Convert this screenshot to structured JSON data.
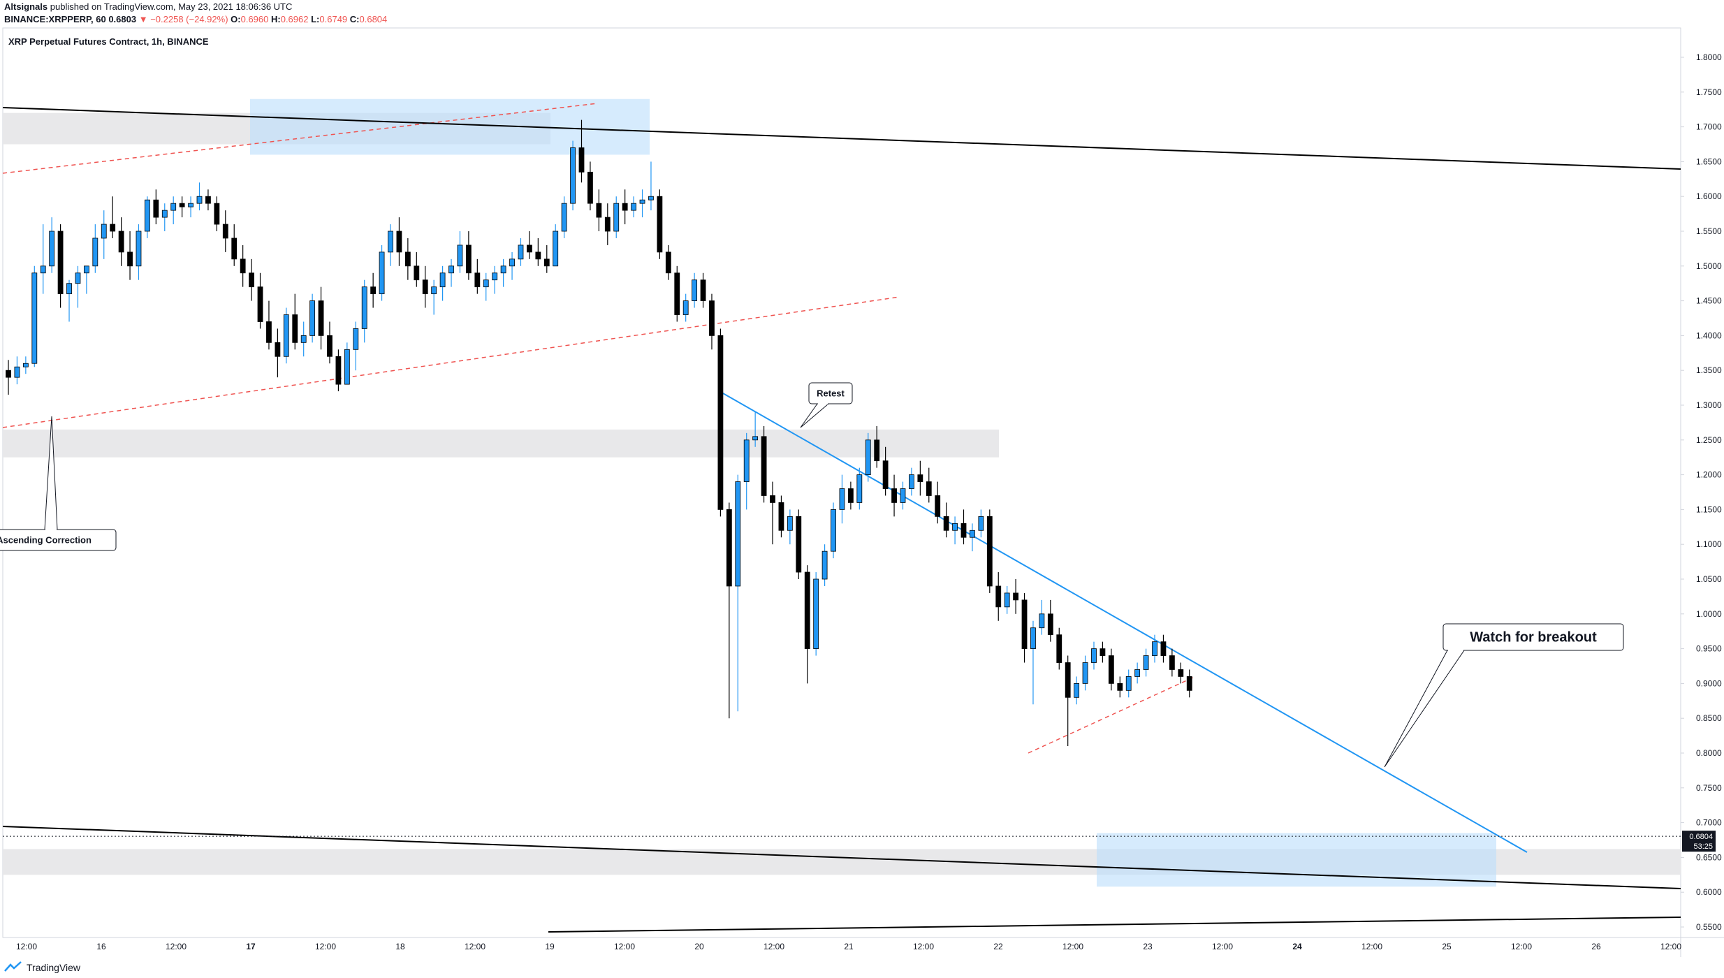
{
  "header": {
    "publisher": "Altsignals",
    "published_text": "published on TradingView.com, May 23, 2021 18:06:36 UTC",
    "symbol_line": "BINANCE:XRPPERP, 60",
    "last": "0.6803",
    "change": "−0.2258 (−24.92%)",
    "open_label": "O:",
    "open": "0.6960",
    "high_label": "H:",
    "high": "0.6962",
    "low_label": "L:",
    "low": "0.6749",
    "close_label": "C:",
    "close": "0.6804"
  },
  "footer": {
    "brand": "TradingView"
  },
  "colors": {
    "up": "#2196f3",
    "down": "#000000",
    "trendline": "#2196f3",
    "dashed": "#ef5350",
    "zone_gray": "#e8e8ea",
    "zone_blue": "#bbdefb",
    "neg": "#ef5350"
  },
  "chart_data": {
    "type": "candlestick",
    "title": "XRP Perpetual Futures Contract, 1h, BINANCE",
    "y_ticks": [
      "1.8000",
      "1.7500",
      "1.7000",
      "1.6500",
      "1.6000",
      "1.5500",
      "1.5000",
      "1.4500",
      "1.4000",
      "1.3500",
      "1.3000",
      "1.2500",
      "1.2000",
      "1.1500",
      "1.1000",
      "1.0500",
      "1.0000",
      "0.9500",
      "0.9000",
      "0.8500",
      "0.8000",
      "0.7500",
      "0.7000",
      "0.6500",
      "0.6000",
      "0.5500"
    ],
    "ylim": [
      0.55,
      1.8
    ],
    "x_ticks": [
      "12:00",
      "16",
      "12:00",
      "17",
      "12:00",
      "18",
      "12:00",
      "19",
      "12:00",
      "20",
      "12:00",
      "21",
      "12:00",
      "22",
      "12:00",
      "23",
      "12:00",
      "24",
      "12:00",
      "25",
      "12:00",
      "26",
      "12:00"
    ],
    "bold_x_ticks": [
      "17",
      "24"
    ],
    "last_price": "0.6804",
    "countdown": "53:25",
    "x_start": "2021-05-15 12:00",
    "x_end": "2021-05-26 12:00",
    "candle_interval_hours": 1,
    "candles": [
      [
        1.35,
        1.365,
        1.315,
        1.34
      ],
      [
        1.34,
        1.37,
        1.33,
        1.355
      ],
      [
        1.355,
        1.37,
        1.345,
        1.36
      ],
      [
        1.36,
        1.5,
        1.355,
        1.49
      ],
      [
        1.49,
        1.56,
        1.46,
        1.5
      ],
      [
        1.5,
        1.57,
        1.49,
        1.55
      ],
      [
        1.55,
        1.56,
        1.44,
        1.46
      ],
      [
        1.46,
        1.48,
        1.42,
        1.475
      ],
      [
        1.475,
        1.5,
        1.44,
        1.49
      ],
      [
        1.49,
        1.5,
        1.46,
        1.5
      ],
      [
        1.5,
        1.56,
        1.49,
        1.54
      ],
      [
        1.54,
        1.58,
        1.51,
        1.56
      ],
      [
        1.56,
        1.6,
        1.54,
        1.55
      ],
      [
        1.55,
        1.57,
        1.5,
        1.52
      ],
      [
        1.52,
        1.55,
        1.48,
        1.5
      ],
      [
        1.5,
        1.56,
        1.48,
        1.55
      ],
      [
        1.55,
        1.6,
        1.54,
        1.595
      ],
      [
        1.595,
        1.61,
        1.56,
        1.57
      ],
      [
        1.57,
        1.59,
        1.55,
        1.58
      ],
      [
        1.58,
        1.6,
        1.56,
        1.59
      ],
      [
        1.59,
        1.6,
        1.57,
        1.585
      ],
      [
        1.585,
        1.6,
        1.57,
        1.59
      ],
      [
        1.59,
        1.62,
        1.58,
        1.6
      ],
      [
        1.6,
        1.61,
        1.58,
        1.59
      ],
      [
        1.59,
        1.6,
        1.55,
        1.56
      ],
      [
        1.56,
        1.58,
        1.52,
        1.54
      ],
      [
        1.54,
        1.56,
        1.5,
        1.51
      ],
      [
        1.51,
        1.53,
        1.47,
        1.49
      ],
      [
        1.49,
        1.51,
        1.45,
        1.47
      ],
      [
        1.47,
        1.49,
        1.41,
        1.42
      ],
      [
        1.42,
        1.45,
        1.38,
        1.39
      ],
      [
        1.39,
        1.41,
        1.34,
        1.37
      ],
      [
        1.37,
        1.44,
        1.36,
        1.43
      ],
      [
        1.43,
        1.46,
        1.38,
        1.39
      ],
      [
        1.39,
        1.42,
        1.37,
        1.4
      ],
      [
        1.4,
        1.46,
        1.39,
        1.45
      ],
      [
        1.45,
        1.47,
        1.38,
        1.4
      ],
      [
        1.4,
        1.42,
        1.36,
        1.37
      ],
      [
        1.37,
        1.38,
        1.32,
        1.33
      ],
      [
        1.33,
        1.39,
        1.33,
        1.38
      ],
      [
        1.38,
        1.42,
        1.35,
        1.41
      ],
      [
        1.41,
        1.48,
        1.39,
        1.47
      ],
      [
        1.47,
        1.49,
        1.44,
        1.46
      ],
      [
        1.46,
        1.53,
        1.45,
        1.52
      ],
      [
        1.52,
        1.56,
        1.5,
        1.55
      ],
      [
        1.55,
        1.57,
        1.5,
        1.52
      ],
      [
        1.52,
        1.54,
        1.48,
        1.5
      ],
      [
        1.5,
        1.52,
        1.47,
        1.48
      ],
      [
        1.48,
        1.5,
        1.44,
        1.46
      ],
      [
        1.46,
        1.48,
        1.43,
        1.47
      ],
      [
        1.47,
        1.5,
        1.45,
        1.49
      ],
      [
        1.49,
        1.51,
        1.47,
        1.5
      ],
      [
        1.5,
        1.55,
        1.49,
        1.53
      ],
      [
        1.53,
        1.55,
        1.48,
        1.49
      ],
      [
        1.49,
        1.51,
        1.46,
        1.47
      ],
      [
        1.47,
        1.49,
        1.45,
        1.48
      ],
      [
        1.48,
        1.5,
        1.46,
        1.49
      ],
      [
        1.49,
        1.51,
        1.47,
        1.5
      ],
      [
        1.5,
        1.52,
        1.48,
        1.51
      ],
      [
        1.51,
        1.54,
        1.5,
        1.53
      ],
      [
        1.53,
        1.55,
        1.51,
        1.52
      ],
      [
        1.52,
        1.54,
        1.5,
        1.51
      ],
      [
        1.51,
        1.53,
        1.49,
        1.5
      ],
      [
        1.5,
        1.56,
        1.5,
        1.55
      ],
      [
        1.55,
        1.6,
        1.54,
        1.59
      ],
      [
        1.59,
        1.68,
        1.58,
        1.67
      ],
      [
        1.67,
        1.71,
        1.62,
        1.635
      ],
      [
        1.635,
        1.65,
        1.58,
        1.59
      ],
      [
        1.59,
        1.61,
        1.55,
        1.57
      ],
      [
        1.57,
        1.59,
        1.53,
        1.55
      ],
      [
        1.55,
        1.6,
        1.54,
        1.59
      ],
      [
        1.59,
        1.61,
        1.56,
        1.58
      ],
      [
        1.58,
        1.6,
        1.57,
        1.59
      ],
      [
        1.59,
        1.61,
        1.57,
        1.595
      ],
      [
        1.595,
        1.65,
        1.58,
        1.6
      ],
      [
        1.6,
        1.61,
        1.51,
        1.52
      ],
      [
        1.52,
        1.53,
        1.48,
        1.49
      ],
      [
        1.49,
        1.5,
        1.42,
        1.43
      ],
      [
        1.43,
        1.46,
        1.42,
        1.45
      ],
      [
        1.45,
        1.49,
        1.44,
        1.48
      ],
      [
        1.48,
        1.49,
        1.44,
        1.45
      ],
      [
        1.45,
        1.46,
        1.38,
        1.4
      ],
      [
        1.4,
        1.41,
        1.14,
        1.15
      ],
      [
        1.15,
        1.16,
        0.85,
        1.04
      ],
      [
        1.04,
        1.2,
        0.86,
        1.19
      ],
      [
        1.19,
        1.26,
        1.15,
        1.25
      ],
      [
        1.25,
        1.29,
        1.24,
        1.255
      ],
      [
        1.255,
        1.27,
        1.16,
        1.17
      ],
      [
        1.17,
        1.19,
        1.1,
        1.16
      ],
      [
        1.16,
        1.17,
        1.11,
        1.12
      ],
      [
        1.12,
        1.15,
        1.1,
        1.14
      ],
      [
        1.14,
        1.15,
        1.05,
        1.06
      ],
      [
        1.06,
        1.07,
        0.9,
        0.95
      ],
      [
        0.95,
        1.06,
        0.94,
        1.05
      ],
      [
        1.05,
        1.1,
        1.04,
        1.09
      ],
      [
        1.09,
        1.16,
        1.08,
        1.15
      ],
      [
        1.15,
        1.2,
        1.13,
        1.18
      ],
      [
        1.18,
        1.19,
        1.15,
        1.16
      ],
      [
        1.16,
        1.21,
        1.15,
        1.2
      ],
      [
        1.2,
        1.26,
        1.19,
        1.25
      ],
      [
        1.25,
        1.27,
        1.21,
        1.22
      ],
      [
        1.22,
        1.24,
        1.17,
        1.18
      ],
      [
        1.18,
        1.2,
        1.14,
        1.16
      ],
      [
        1.16,
        1.19,
        1.15,
        1.18
      ],
      [
        1.18,
        1.21,
        1.17,
        1.2
      ],
      [
        1.2,
        1.22,
        1.17,
        1.19
      ],
      [
        1.19,
        1.21,
        1.16,
        1.17
      ],
      [
        1.17,
        1.19,
        1.13,
        1.14
      ],
      [
        1.14,
        1.16,
        1.11,
        1.12
      ],
      [
        1.12,
        1.14,
        1.1,
        1.13
      ],
      [
        1.13,
        1.15,
        1.1,
        1.11
      ],
      [
        1.11,
        1.13,
        1.09,
        1.12
      ],
      [
        1.12,
        1.15,
        1.11,
        1.14
      ],
      [
        1.14,
        1.15,
        1.03,
        1.04
      ],
      [
        1.04,
        1.06,
        0.99,
        1.01
      ],
      [
        1.01,
        1.04,
        1.0,
        1.03
      ],
      [
        1.03,
        1.05,
        1.0,
        1.02
      ],
      [
        1.02,
        1.03,
        0.93,
        0.95
      ],
      [
        0.95,
        0.99,
        0.87,
        0.98
      ],
      [
        0.98,
        1.02,
        0.97,
        1.0
      ],
      [
        1.0,
        1.02,
        0.96,
        0.97
      ],
      [
        0.97,
        0.98,
        0.92,
        0.93
      ],
      [
        0.93,
        0.94,
        0.81,
        0.88
      ],
      [
        0.88,
        0.91,
        0.87,
        0.9
      ],
      [
        0.9,
        0.94,
        0.89,
        0.93
      ],
      [
        0.93,
        0.96,
        0.92,
        0.95
      ],
      [
        0.95,
        0.96,
        0.93,
        0.94
      ],
      [
        0.94,
        0.95,
        0.89,
        0.9
      ],
      [
        0.9,
        0.91,
        0.88,
        0.89
      ],
      [
        0.89,
        0.92,
        0.88,
        0.91
      ],
      [
        0.91,
        0.93,
        0.9,
        0.92
      ],
      [
        0.92,
        0.95,
        0.91,
        0.94
      ],
      [
        0.94,
        0.97,
        0.93,
        0.96
      ],
      [
        0.96,
        0.97,
        0.93,
        0.94
      ],
      [
        0.94,
        0.95,
        0.91,
        0.92
      ],
      [
        0.92,
        0.93,
        0.9,
        0.91
      ],
      [
        0.91,
        0.92,
        0.88,
        0.89
      ]
    ],
    "annotations": [
      {
        "text": "Retest",
        "kind": "callout"
      },
      {
        "text": "Ascending Correction",
        "kind": "callout"
      },
      {
        "text": "Watch for breakout",
        "kind": "callout"
      }
    ]
  }
}
